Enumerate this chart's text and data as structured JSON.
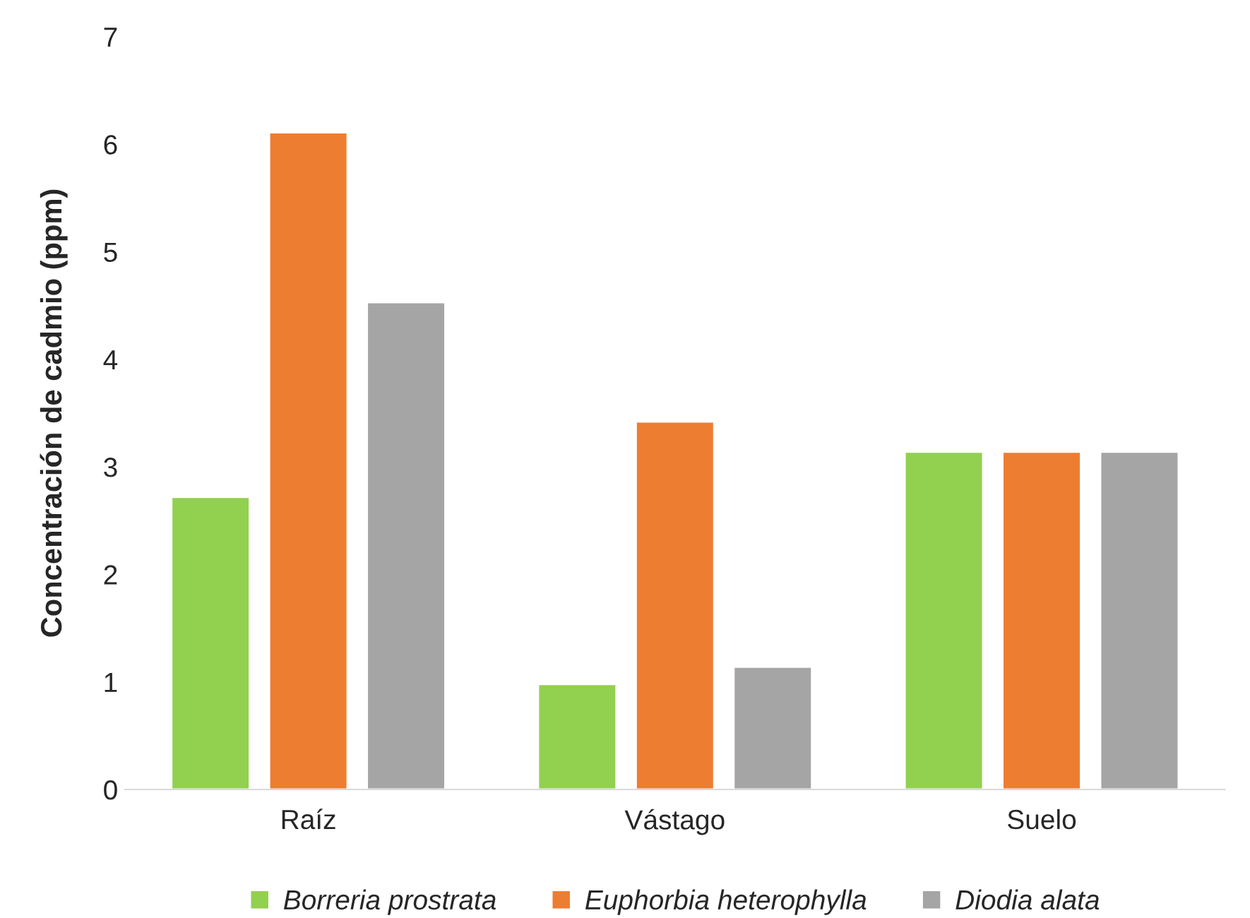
{
  "chart_data": {
    "type": "bar",
    "ylabel": "Concentración de cadmio (ppm)",
    "categories": [
      "Raíz",
      "Vástago",
      "Suelo"
    ],
    "series": [
      {
        "name": "Borreria prostrata",
        "color": "#92d050",
        "values": [
          2.72,
          0.98,
          3.14
        ]
      },
      {
        "name": "Euphorbia heterophylla",
        "color": "#ed7d31",
        "values": [
          6.11,
          3.42,
          3.14
        ]
      },
      {
        "name": "Diodia alata",
        "color": "#a5a5a5",
        "values": [
          4.53,
          1.14,
          3.14
        ]
      }
    ],
    "ylim": [
      0,
      7
    ],
    "yticks": [
      0,
      1,
      2,
      3,
      4,
      5,
      6,
      7
    ],
    "grid": false,
    "legend": "bottom"
  }
}
